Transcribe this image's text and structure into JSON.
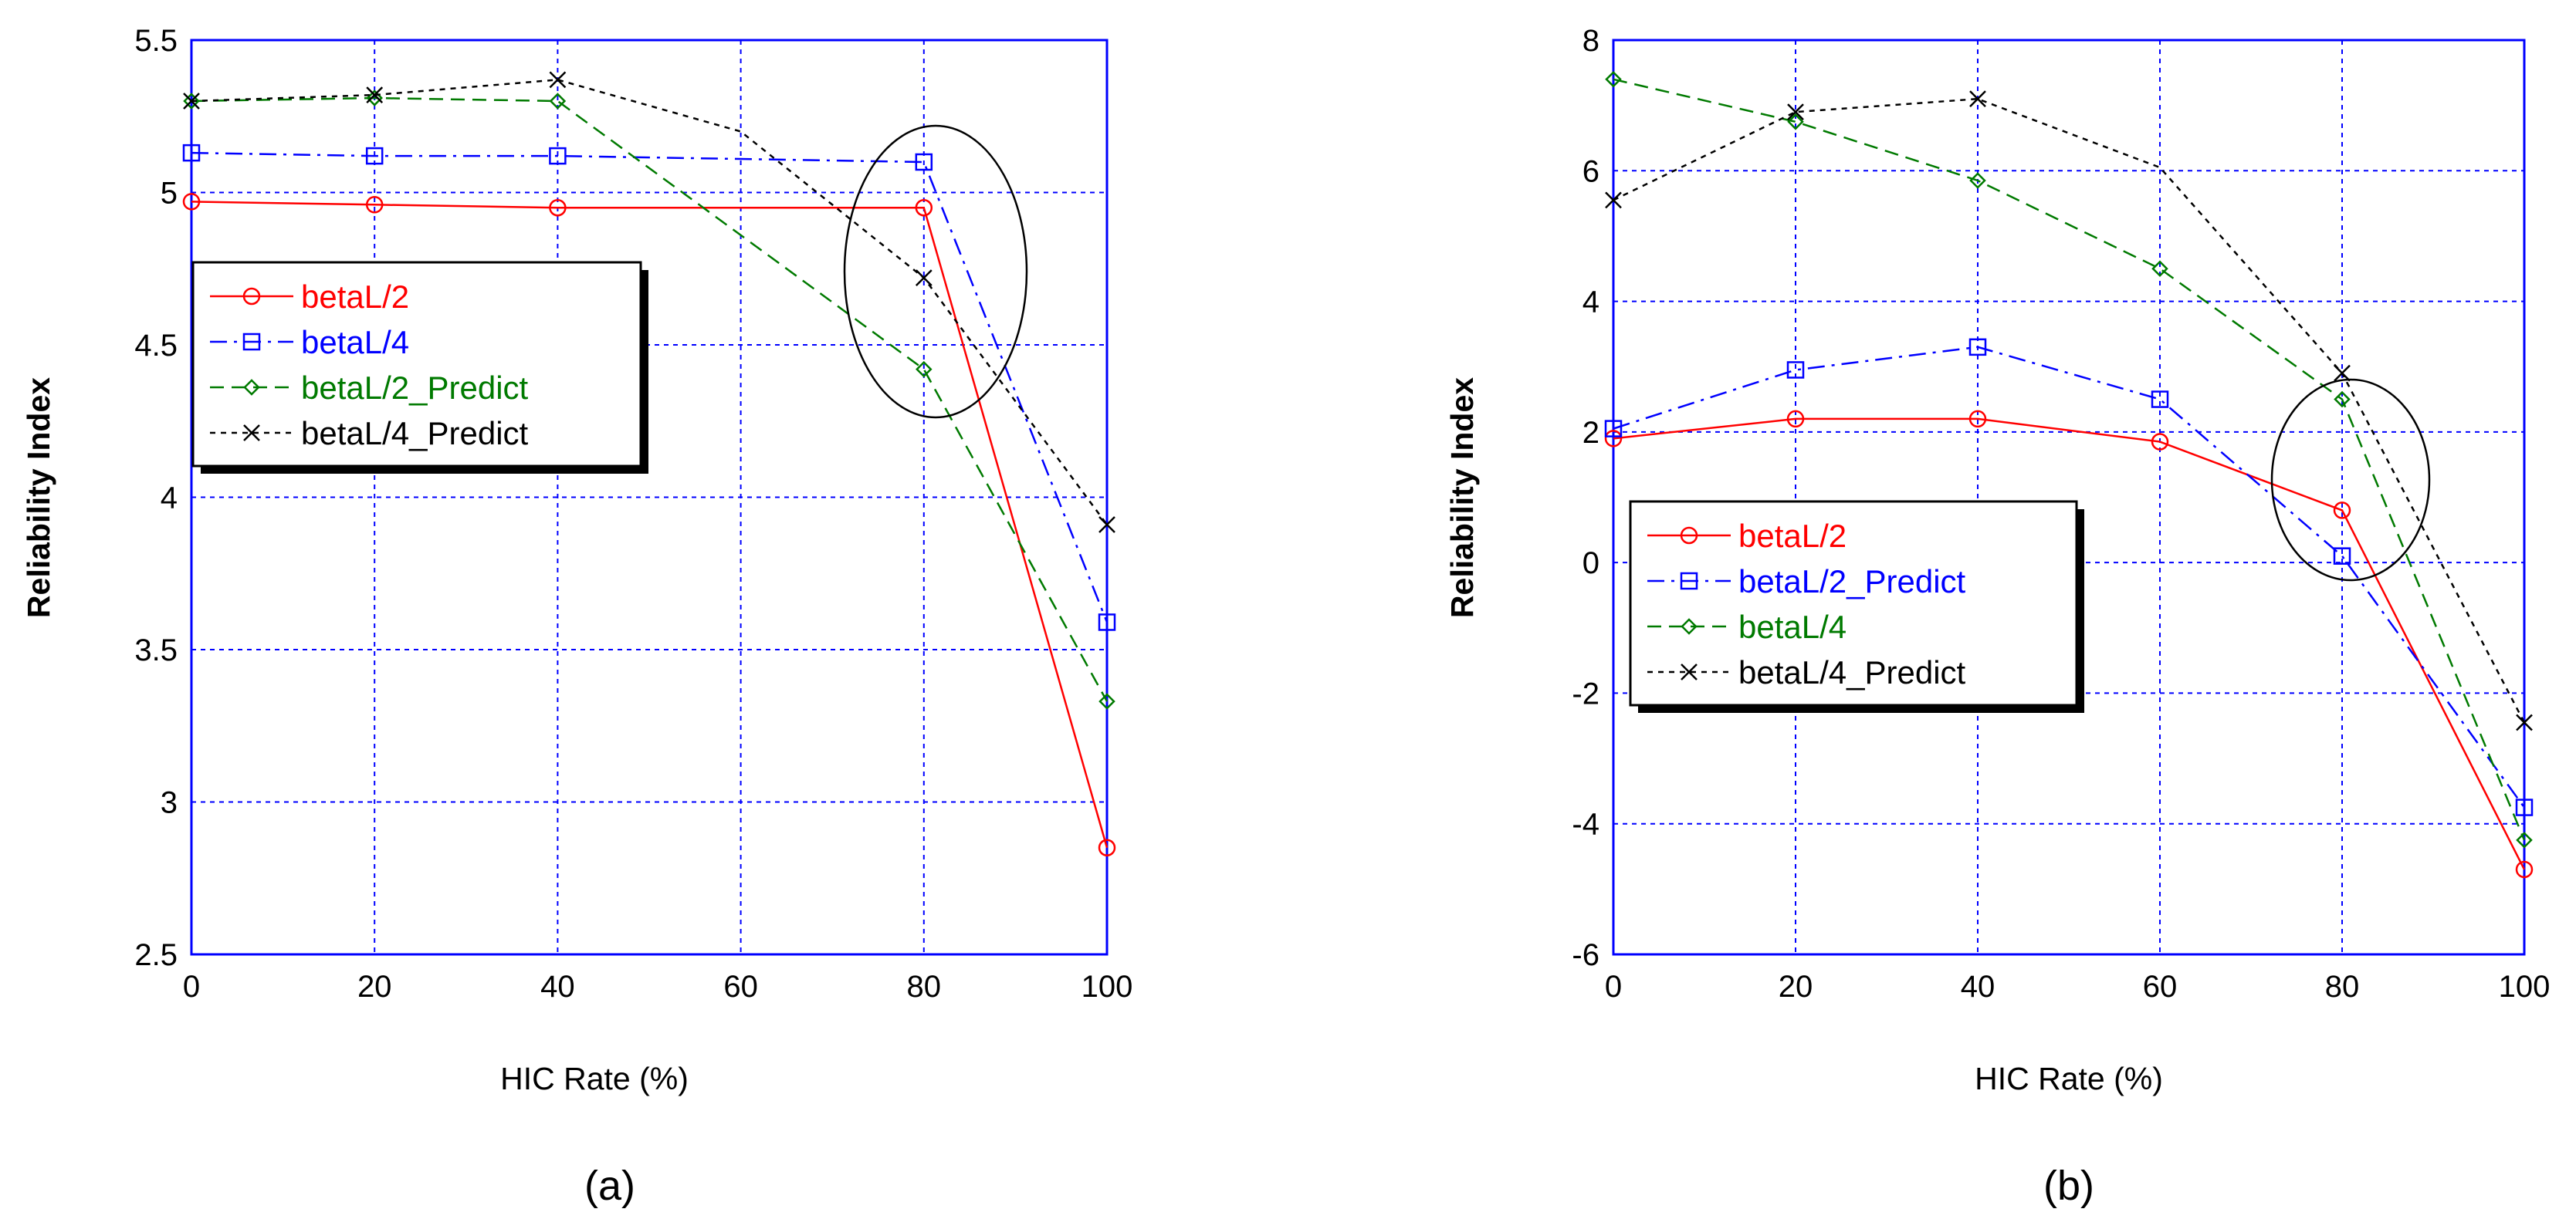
{
  "chart_data": [
    {
      "type": "line",
      "panel_label": "(a)",
      "xlabel": "HIC Rate (%)",
      "ylabel": "Reliability Index",
      "xlim": [
        0,
        100
      ],
      "ylim": [
        2.5,
        5.5
      ],
      "x_ticks": [
        "0",
        "20",
        "40",
        "60",
        "80",
        "100"
      ],
      "y_ticks": [
        "2.5",
        "3",
        "3.5",
        "4",
        "4.5",
        "5",
        "5.5"
      ],
      "grid": true,
      "legend_position": "center-left",
      "annotation": "ellipse around the points at HIC Rate 80",
      "series": [
        {
          "name": "betaL/2",
          "color": "#ff0000",
          "dash": "solid",
          "marker": "circle",
          "x": [
            0,
            20,
            40,
            80,
            100
          ],
          "y": [
            4.97,
            4.96,
            4.95,
            4.95,
            2.85
          ]
        },
        {
          "name": "betaL/4",
          "color": "#0000ff",
          "dash": "dashdot",
          "marker": "square",
          "x": [
            0,
            20,
            40,
            80,
            100
          ],
          "y": [
            5.13,
            5.12,
            5.12,
            5.1,
            3.59
          ]
        },
        {
          "name": "betaL/2_Predict",
          "color": "#007a00",
          "dash": "dashed",
          "marker": "diamond",
          "x": [
            0,
            20,
            40,
            80,
            100
          ],
          "y": [
            5.3,
            5.31,
            5.3,
            4.42,
            3.33
          ]
        },
        {
          "name": "betaL/4_Predict",
          "color": "#000000",
          "dash": "dotted",
          "marker": "x",
          "x": [
            0,
            20,
            40,
            60,
            80,
            100
          ],
          "y": [
            5.3,
            5.32,
            5.37,
            5.2,
            4.72,
            3.91
          ]
        }
      ]
    },
    {
      "type": "line",
      "panel_label": "(b)",
      "xlabel": "HIC Rate (%)",
      "ylabel": "Reliability Index",
      "xlim": [
        0,
        100
      ],
      "ylim": [
        -6,
        8
      ],
      "x_ticks": [
        "0",
        "20",
        "40",
        "60",
        "80",
        "100"
      ],
      "y_ticks": [
        "-6",
        "-4",
        "-2",
        "0",
        "2",
        "4",
        "6",
        "8"
      ],
      "grid": true,
      "legend_position": "center-left",
      "annotation": "ellipse around the points at HIC Rate 80",
      "series": [
        {
          "name": "betaL/2",
          "color": "#ff0000",
          "dash": "solid",
          "marker": "circle",
          "x": [
            0,
            20,
            40,
            60,
            80,
            100
          ],
          "y": [
            1.9,
            2.2,
            2.2,
            1.85,
            0.8,
            -4.7
          ]
        },
        {
          "name": "betaL/2_Predict",
          "color": "#0000ff",
          "dash": "dashdot",
          "marker": "square",
          "x": [
            0,
            20,
            40,
            60,
            80,
            100
          ],
          "y": [
            2.05,
            2.95,
            3.3,
            2.5,
            0.1,
            -3.75
          ]
        },
        {
          "name": "betaL/4",
          "color": "#007a00",
          "dash": "dashed",
          "marker": "diamond",
          "x": [
            0,
            20,
            40,
            60,
            80,
            100
          ],
          "y": [
            7.4,
            6.75,
            5.85,
            4.5,
            2.5,
            -4.25
          ]
        },
        {
          "name": "betaL/4_Predict",
          "color": "#000000",
          "dash": "dotted",
          "marker": "x",
          "x": [
            0,
            20,
            40,
            60,
            80,
            100
          ],
          "y": [
            5.55,
            6.9,
            7.1,
            6.05,
            2.9,
            -2.45
          ]
        }
      ]
    }
  ]
}
